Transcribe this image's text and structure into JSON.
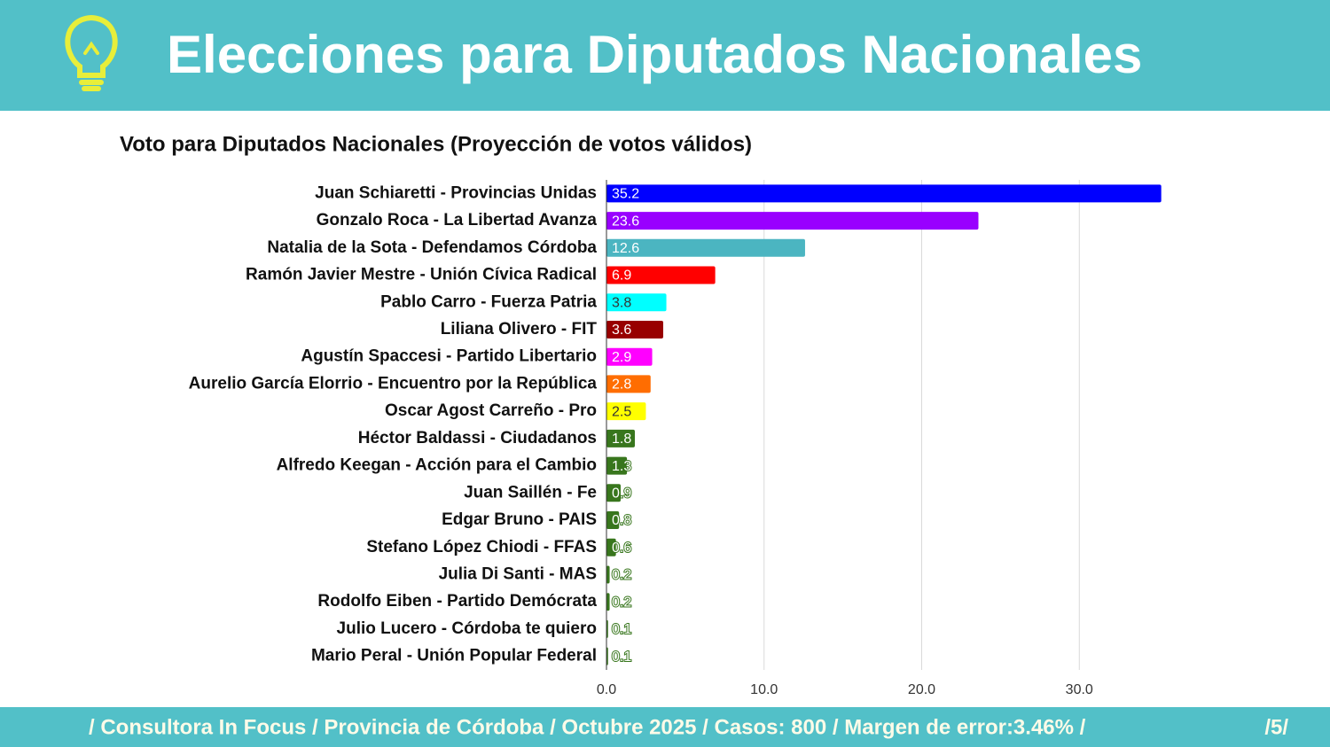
{
  "header": {
    "title": "Elecciones para Diputados Nacionales"
  },
  "chart_data": {
    "type": "bar",
    "orientation": "horizontal",
    "title": "Voto para Diputados Nacionales (Proyección de votos válidos)",
    "categories": [
      "Juan Schiaretti - Provincias Unidas",
      "Gonzalo Roca - La Libertad Avanza",
      "Natalia de la Sota - Defendamos Córdoba",
      "Ramón Javier Mestre - Unión Cívica Radical",
      "Pablo Carro - Fuerza Patria",
      "Liliana Olivero - FIT",
      "Agustín Spaccesi - Partido Libertario",
      "Aurelio García Elorrio - Encuentro por la República",
      "Oscar Agost Carreño - Pro",
      "Héctor Baldassi - Ciudadanos",
      "Alfredo Keegan - Acción para el Cambio",
      "Juan Saillén - Fe",
      "Edgar Bruno - PAIS",
      "Stefano López Chiodi - FFAS",
      "Julia Di Santi - MAS",
      "Rodolfo Eiben - Partido Demócrata",
      "Julio Lucero - Córdoba te quiero",
      "Mario Peral - Unión Popular Federal"
    ],
    "values": [
      35.2,
      23.6,
      12.6,
      6.9,
      3.8,
      3.6,
      2.9,
      2.8,
      2.5,
      1.8,
      1.3,
      0.9,
      0.8,
      0.6,
      0.2,
      0.2,
      0.1,
      0.1
    ],
    "colors": [
      "#0000ff",
      "#9900ff",
      "#4bb5c1",
      "#ff0000",
      "#00ffff",
      "#980000",
      "#ff00ff",
      "#ff6d01",
      "#ffff00",
      "#38761d",
      "#38761d",
      "#38761d",
      "#38761d",
      "#38761d",
      "#38761d",
      "#38761d",
      "#38761d",
      "#38761d"
    ],
    "xlim": [
      0,
      40
    ],
    "xticks": [
      {
        "value": 0,
        "label": "0.0"
      },
      {
        "value": 10,
        "label": "10.0"
      },
      {
        "value": 20,
        "label": "20.0"
      },
      {
        "value": 30,
        "label": "30.0"
      }
    ],
    "grid": true
  },
  "footer": {
    "text": "/ Consultora In Focus / Provincia de Córdoba / Octubre 2025 / Casos: 800 / Margen de error:3.46% /",
    "page": "/5/"
  }
}
